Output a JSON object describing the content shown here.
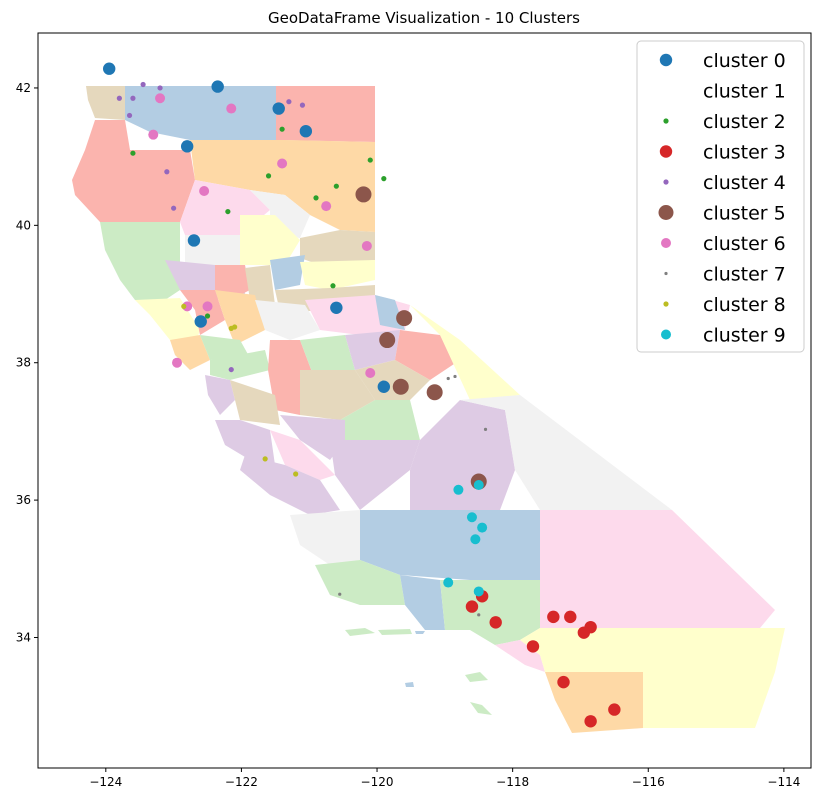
{
  "chart_data": {
    "type": "scatter",
    "title": "GeoDataFrame Visualization - 10 Clusters",
    "xlabel": "",
    "ylabel": "",
    "xlim": [
      -125.0,
      -113.6
    ],
    "ylim": [
      32.1,
      42.8
    ],
    "x_ticks": [
      -124,
      -122,
      -120,
      -118,
      -116,
      -114
    ],
    "x_tick_labels": [
      "−124",
      "−122",
      "−120",
      "−118",
      "−116",
      "−114"
    ],
    "y_ticks": [
      34,
      36,
      38,
      40,
      42
    ],
    "y_tick_labels": [
      "34",
      "36",
      "38",
      "40",
      "42"
    ],
    "grid": false,
    "legend": "top-right",
    "basemap": "California counties (choropleth, Pastel1 palette)",
    "series": [
      {
        "name": "cluster 0",
        "color": "#1f77b4",
        "size": "large",
        "points": [
          [
            -123.95,
            42.28
          ],
          [
            -122.35,
            42.02
          ],
          [
            -121.45,
            41.7
          ],
          [
            -121.05,
            41.37
          ],
          [
            -122.8,
            41.15
          ],
          [
            -122.7,
            39.78
          ],
          [
            -122.6,
            38.6
          ],
          [
            -120.6,
            38.8
          ],
          [
            -119.9,
            37.65
          ]
        ]
      },
      {
        "name": "cluster 1",
        "color": "#ffffff",
        "size": "none",
        "points": []
      },
      {
        "name": "cluster 2",
        "color": "#2ca02c",
        "size": "small",
        "points": [
          [
            -123.6,
            41.05
          ],
          [
            -121.4,
            41.4
          ],
          [
            -121.6,
            40.72
          ],
          [
            -120.6,
            40.57
          ],
          [
            -120.1,
            40.95
          ],
          [
            -119.9,
            40.68
          ],
          [
            -120.9,
            40.4
          ],
          [
            -122.2,
            40.2
          ],
          [
            -120.65,
            39.12
          ],
          [
            -122.5,
            38.68
          ]
        ]
      },
      {
        "name": "cluster 3",
        "color": "#d62728",
        "size": "large",
        "points": [
          [
            -118.45,
            34.6
          ],
          [
            -118.6,
            34.45
          ],
          [
            -118.25,
            34.22
          ],
          [
            -117.4,
            34.3
          ],
          [
            -117.15,
            34.3
          ],
          [
            -116.85,
            34.15
          ],
          [
            -116.95,
            34.07
          ],
          [
            -117.7,
            33.87
          ],
          [
            -117.25,
            33.35
          ],
          [
            -116.5,
            32.95
          ],
          [
            -116.85,
            32.78
          ]
        ]
      },
      {
        "name": "cluster 4",
        "color": "#9467bd",
        "size": "small",
        "points": [
          [
            -123.45,
            42.05
          ],
          [
            -123.2,
            42.0
          ],
          [
            -123.8,
            41.85
          ],
          [
            -123.6,
            41.85
          ],
          [
            -123.65,
            41.6
          ],
          [
            -121.1,
            41.75
          ],
          [
            -121.3,
            41.8
          ],
          [
            -123.1,
            40.78
          ],
          [
            -123.0,
            40.25
          ],
          [
            -122.15,
            37.9
          ]
        ]
      },
      {
        "name": "cluster 5",
        "color": "#8c564b",
        "size": "xlarge",
        "points": [
          [
            -120.2,
            40.45
          ],
          [
            -119.6,
            38.65
          ],
          [
            -119.85,
            38.33
          ],
          [
            -119.65,
            37.65
          ],
          [
            -119.15,
            37.57
          ],
          [
            -118.5,
            36.27
          ]
        ]
      },
      {
        "name": "cluster 6",
        "color": "#e377c2",
        "size": "medium",
        "points": [
          [
            -122.15,
            41.7
          ],
          [
            -123.2,
            41.85
          ],
          [
            -123.3,
            41.32
          ],
          [
            -121.4,
            40.9
          ],
          [
            -122.55,
            40.5
          ],
          [
            -120.75,
            40.28
          ],
          [
            -120.15,
            39.7
          ],
          [
            -122.8,
            38.82
          ],
          [
            -122.5,
            38.82
          ],
          [
            -122.95,
            38.0
          ],
          [
            -120.1,
            37.85
          ]
        ]
      },
      {
        "name": "cluster 7",
        "color": "#7f7f7f",
        "size": "tiny",
        "points": [
          [
            -118.95,
            37.77
          ],
          [
            -118.85,
            37.8
          ],
          [
            -118.4,
            37.03
          ],
          [
            -120.55,
            34.63
          ],
          [
            -118.5,
            34.33
          ]
        ]
      },
      {
        "name": "cluster 8",
        "color": "#bcbd22",
        "size": "small",
        "points": [
          [
            -122.85,
            38.82
          ],
          [
            -122.15,
            38.5
          ],
          [
            -122.1,
            38.52
          ],
          [
            -121.65,
            36.6
          ],
          [
            -121.2,
            36.38
          ]
        ]
      },
      {
        "name": "cluster 9",
        "color": "#17becf",
        "size": "medium",
        "points": [
          [
            -118.8,
            36.15
          ],
          [
            -118.5,
            36.22
          ],
          [
            -118.6,
            35.75
          ],
          [
            -118.45,
            35.6
          ],
          [
            -118.55,
            35.43
          ],
          [
            -118.95,
            34.8
          ],
          [
            -118.5,
            34.67
          ]
        ]
      }
    ]
  }
}
